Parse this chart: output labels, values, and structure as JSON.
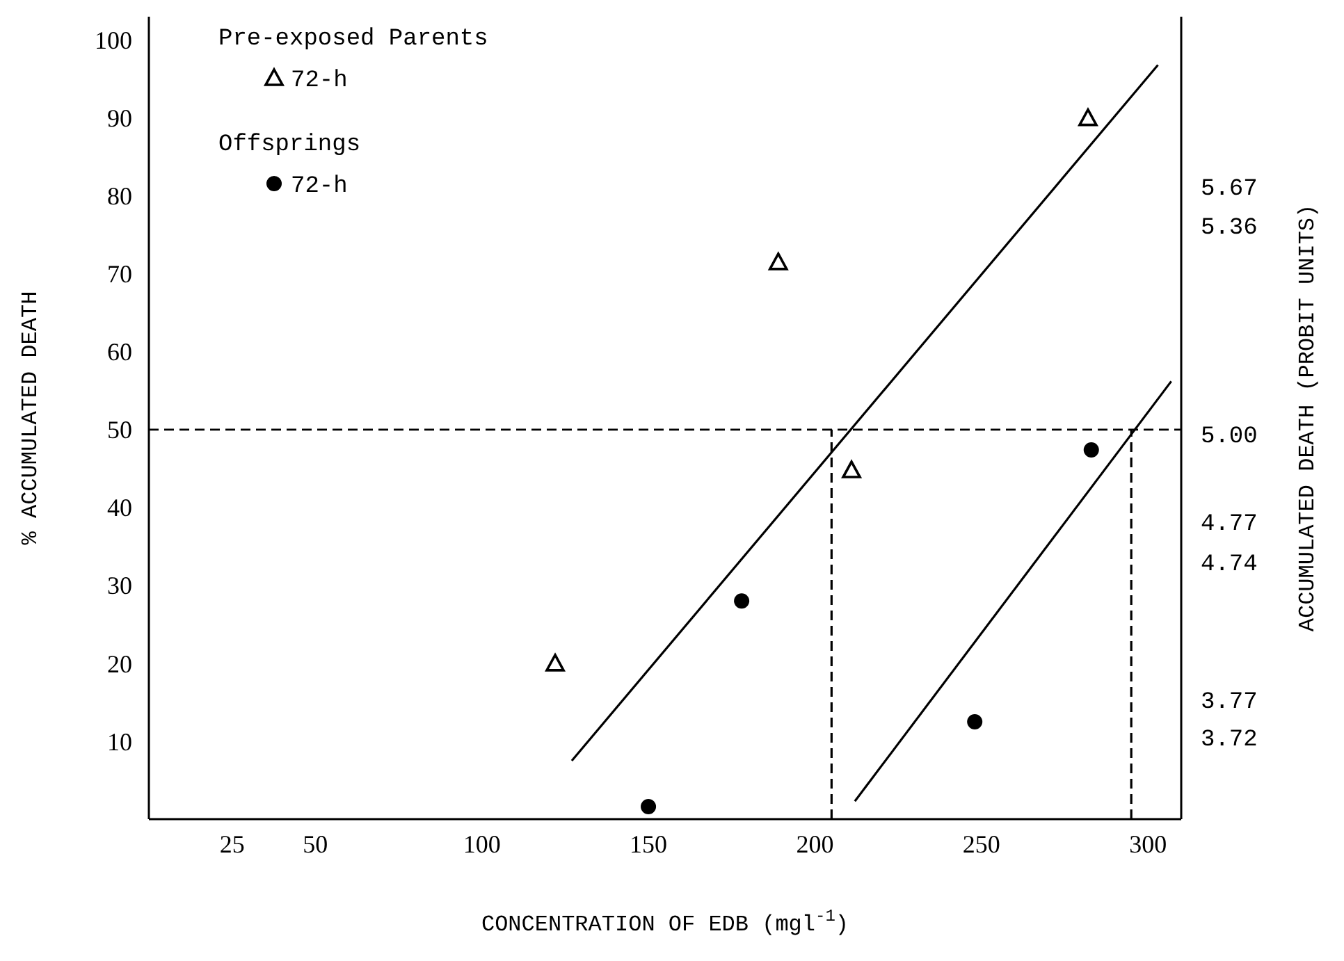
{
  "chart_data": {
    "type": "scatter",
    "xlabel": "CONCENTRATION OF EDB (mgl$^{-1}$)",
    "ylabel": "% ACCUMULATED DEATH",
    "xlim": [
      0,
      310
    ],
    "xticks": [
      25,
      50,
      100,
      150,
      200,
      250,
      300
    ],
    "ylim": [
      0,
      103
    ],
    "yticks": [
      10,
      20,
      30,
      40,
      50,
      60,
      70,
      80,
      90,
      100
    ],
    "series": [
      {
        "name": "72-h",
        "marker": "triangle",
        "color": "#000000",
        "x": [
          122,
          189,
          211,
          282
        ],
        "values": [
          20,
          71.5,
          44.8,
          90
        ]
      },
      {
        "name": "72-h",
        "marker": "circle",
        "color": "#000000",
        "x": [
          150,
          178,
          248,
          283
        ],
        "values": [
          1.6,
          28,
          12.5,
          47.4
        ]
      },
      {
        "type": "line",
        "color": "#000000",
        "line_style": "solid",
        "x": [
          127,
          303
        ],
        "values": [
          7.5,
          96.8
        ]
      },
      {
        "type": "line",
        "color": "#000000",
        "line_style": "solid",
        "x": [
          212,
          307
        ],
        "values": [
          2.3,
          56.2
        ]
      },
      {
        "type": "line",
        "color": "#000000",
        "line_style": "dashed",
        "x": [
          205,
          205
        ],
        "values": [
          0,
          50
        ]
      },
      {
        "type": "line",
        "color": "#000000",
        "line_style": "dashed",
        "x": [
          295,
          295
        ],
        "values": [
          0,
          50
        ]
      }
    ],
    "ref_lines": [
      {
        "axis": "y",
        "value": 50,
        "color": "#000000",
        "line_style": "dashed"
      }
    ],
    "annotations": [
      "Pre-exposed Parents",
      "Offsprings",
      "5.67",
      "5.36",
      "5.00",
      "4.77",
      "4.74",
      "3.77",
      "3.72",
      "ACCUMULATED DEATH (PROBIT UNITS)"
    ],
    "legend": "top left",
    "grid": false
  }
}
